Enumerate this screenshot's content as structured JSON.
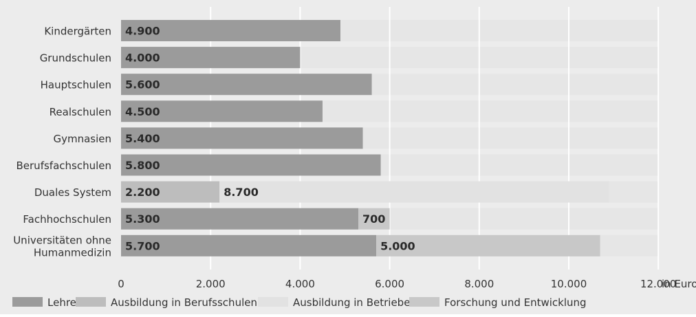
{
  "chart_data": {
    "type": "bar",
    "orientation": "horizontal",
    "stacked": true,
    "categories": [
      "Kindergärten",
      "Grundschulen",
      "Hauptschulen",
      "Realschulen",
      "Gymnasien",
      "Berufsfachschulen",
      "Duales System",
      "Fachhochschulen",
      "Universitäten ohne Humanmedizin"
    ],
    "category_lines": [
      [
        "Kindergärten"
      ],
      [
        "Grundschulen"
      ],
      [
        "Hauptschulen"
      ],
      [
        "Realschulen"
      ],
      [
        "Gymnasien"
      ],
      [
        "Berufsfachschulen"
      ],
      [
        "Duales System"
      ],
      [
        "Fachhochschulen"
      ],
      [
        "Universitäten ohne",
        "Humanmedizin"
      ]
    ],
    "series": [
      {
        "name": "Lehre",
        "color": "#9b9b9b",
        "values": [
          4900,
          4000,
          5600,
          4500,
          5400,
          5800,
          0,
          5300,
          5700
        ],
        "labels": [
          "4.900",
          "4.000",
          "5.600",
          "4.500",
          "5.400",
          "5.800",
          "",
          "5.300",
          "5.700"
        ]
      },
      {
        "name": "Ausbildung in Berufsschulen",
        "color": "#bdbdbd",
        "values": [
          0,
          0,
          0,
          0,
          0,
          0,
          2200,
          0,
          0
        ],
        "labels": [
          "",
          "",
          "",
          "",
          "",
          "",
          "2.200",
          "",
          ""
        ]
      },
      {
        "name": "Ausbildung in Betrieben",
        "color": "#e2e2e2",
        "values": [
          0,
          0,
          0,
          0,
          0,
          0,
          8700,
          0,
          0
        ],
        "labels": [
          "",
          "",
          "",
          "",
          "",
          "",
          "8.700",
          "",
          ""
        ]
      },
      {
        "name": "Forschung und Entwicklung",
        "color": "#c8c8c8",
        "values": [
          0,
          0,
          0,
          0,
          0,
          0,
          0,
          700,
          5000
        ],
        "labels": [
          "",
          "",
          "",
          "",
          "",
          "",
          "",
          "700",
          "5.000"
        ]
      }
    ],
    "xlim": [
      0,
      12000
    ],
    "x_ticks": [
      0,
      2000,
      4000,
      6000,
      8000,
      10000,
      12000
    ],
    "x_tick_labels": [
      "0",
      "2.000",
      "4.000",
      "6.000",
      "8.000",
      "10.000",
      "12.000"
    ],
    "x_unit": "in Euro",
    "grid": true,
    "legend_position": "bottom-left"
  }
}
